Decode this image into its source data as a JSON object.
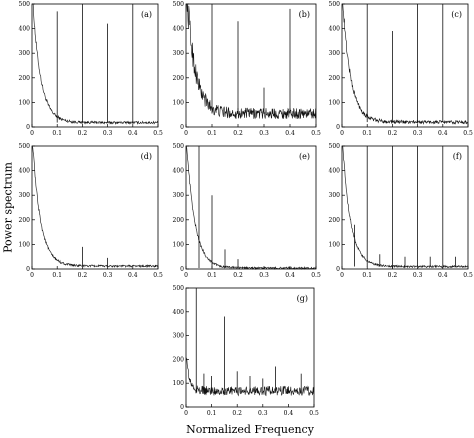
{
  "ylabel": "Power spectrum",
  "xlabel": "Normalized Frequency",
  "chart_data": [
    {
      "type": "line",
      "panel_label": "(a)",
      "x_range": [
        0,
        0.5
      ],
      "ylim": [
        0,
        500
      ],
      "xticks": [
        "0",
        "0.1",
        "0.2",
        "0.3",
        "0.4",
        "0.5"
      ],
      "yticks": [
        "0",
        "100",
        "200",
        "300",
        "400",
        "500"
      ],
      "baseline": "decaying",
      "floor": 18,
      "noise": 5,
      "peaks": [
        {
          "x": 0.1,
          "y": 470
        },
        {
          "x": 0.2,
          "y": 500
        },
        {
          "x": 0.3,
          "y": 420
        },
        {
          "x": 0.4,
          "y": 500
        }
      ]
    },
    {
      "type": "line",
      "panel_label": "(b)",
      "x_range": [
        0,
        0.5
      ],
      "ylim": [
        0,
        500
      ],
      "xticks": [
        "0",
        "0.1",
        "0.2",
        "0.3",
        "0.4",
        "0.5"
      ],
      "yticks": [
        "0",
        "100",
        "200",
        "300",
        "400",
        "500"
      ],
      "baseline": "decaying",
      "floor": 55,
      "noise": 22,
      "peaks": [
        {
          "x": 0.1,
          "y": 500
        },
        {
          "x": 0.2,
          "y": 430
        },
        {
          "x": 0.3,
          "y": 160
        },
        {
          "x": 0.4,
          "y": 480
        }
      ]
    },
    {
      "type": "line",
      "panel_label": "(c)",
      "x_range": [
        0,
        0.5
      ],
      "ylim": [
        0,
        500
      ],
      "xticks": [
        "0",
        "0.1",
        "0.2",
        "0.3",
        "0.4",
        "0.5"
      ],
      "yticks": [
        "0",
        "100",
        "200",
        "300",
        "400",
        "500"
      ],
      "baseline": "decaying",
      "floor": 20,
      "noise": 7,
      "peaks": [
        {
          "x": 0.1,
          "y": 500
        },
        {
          "x": 0.2,
          "y": 390
        },
        {
          "x": 0.3,
          "y": 500
        },
        {
          "x": 0.4,
          "y": 500
        }
      ]
    },
    {
      "type": "line",
      "panel_label": "(d)",
      "x_range": [
        0,
        0.5
      ],
      "ylim": [
        0,
        500
      ],
      "xticks": [
        "0",
        "0.1",
        "0.2",
        "0.3",
        "0.4",
        "0.5"
      ],
      "yticks": [
        "0",
        "100",
        "200",
        "300",
        "400",
        "500"
      ],
      "baseline": "decaying",
      "floor": 12,
      "noise": 4,
      "peaks": [
        {
          "x": 0.2,
          "y": 90
        },
        {
          "x": 0.3,
          "y": 45
        }
      ]
    },
    {
      "type": "line",
      "panel_label": "(e)",
      "x_range": [
        0,
        0.5
      ],
      "ylim": [
        0,
        500
      ],
      "xticks": [
        "0",
        "0.1",
        "0.2",
        "0.3",
        "0.4",
        "0.5"
      ],
      "yticks": [
        "0",
        "100",
        "200",
        "300",
        "400",
        "500"
      ],
      "baseline": "decaying",
      "floor": 4,
      "noise": 4,
      "peaks": [
        {
          "x": 0.05,
          "y": 500
        },
        {
          "x": 0.1,
          "y": 300
        },
        {
          "x": 0.15,
          "y": 80
        },
        {
          "x": 0.2,
          "y": 40
        }
      ]
    },
    {
      "type": "line",
      "panel_label": "(f)",
      "x_range": [
        0,
        0.5
      ],
      "ylim": [
        0,
        500
      ],
      "xticks": [
        "0",
        "0.1",
        "0.2",
        "0.3",
        "0.4",
        "0.5"
      ],
      "yticks": [
        "0",
        "100",
        "200",
        "300",
        "400",
        "500"
      ],
      "baseline": "decaying",
      "floor": 10,
      "noise": 4,
      "peaks": [
        {
          "x": 0.05,
          "y": 180
        },
        {
          "x": 0.1,
          "y": 500
        },
        {
          "x": 0.2,
          "y": 500
        },
        {
          "x": 0.3,
          "y": 500
        },
        {
          "x": 0.4,
          "y": 500
        },
        {
          "x": 0.15,
          "y": 60
        },
        {
          "x": 0.25,
          "y": 50
        },
        {
          "x": 0.35,
          "y": 50
        },
        {
          "x": 0.45,
          "y": 50
        }
      ]
    },
    {
      "type": "line",
      "panel_label": "(g)",
      "x_range": [
        0,
        0.5
      ],
      "ylim": [
        0,
        500
      ],
      "xticks": [
        "0",
        "0.1",
        "0.2",
        "0.3",
        "0.4",
        "0.5"
      ],
      "yticks": [
        "0",
        "100",
        "200",
        "300",
        "400",
        "500"
      ],
      "baseline": "noisy_flat",
      "floor": 60,
      "noise": 40,
      "peaks": [
        {
          "x": 0.04,
          "y": 500
        },
        {
          "x": 0.15,
          "y": 380
        },
        {
          "x": 0.07,
          "y": 140
        },
        {
          "x": 0.1,
          "y": 130
        },
        {
          "x": 0.2,
          "y": 150
        },
        {
          "x": 0.25,
          "y": 130
        },
        {
          "x": 0.3,
          "y": 120
        },
        {
          "x": 0.35,
          "y": 170
        },
        {
          "x": 0.45,
          "y": 140
        }
      ]
    }
  ]
}
